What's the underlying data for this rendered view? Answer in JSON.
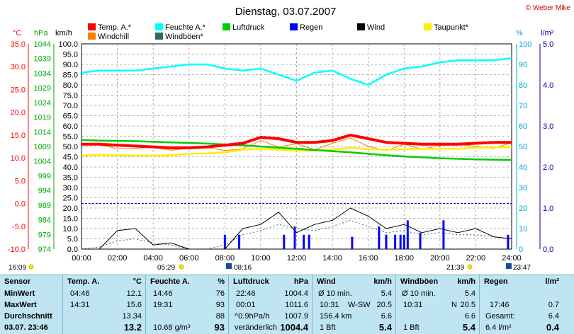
{
  "header": {
    "title": "Dienstag, 03.07.2007",
    "credit": "© Weber Mike"
  },
  "legend": [
    {
      "label": "Temp. A.*",
      "color": "#ff0000"
    },
    {
      "label": "Feuchte A.*",
      "color": "#00ffff"
    },
    {
      "label": "Luftdruck",
      "color": "#00cc00"
    },
    {
      "label": "Regen",
      "color": "#0000ff"
    },
    {
      "label": "Wind",
      "color": "#000000"
    },
    {
      "label": "Taupunkt*",
      "color": "#ffee00"
    },
    {
      "label": "Windchill",
      "color": "#ff8000"
    },
    {
      "label": "Windböen*",
      "color": "#336666"
    }
  ],
  "axes": {
    "temp_unit": "°C",
    "pressure_unit": "hPa",
    "wind_unit": "km/h",
    "humidity_unit": "%",
    "rain_unit": "l/m²",
    "temp_ticks": [
      "35.0",
      "30.0",
      "25.0",
      "20.0",
      "15.0",
      "10.0",
      "5.0",
      "0.0",
      "-5.0",
      "-10.0"
    ],
    "pressure_ticks": [
      "1044",
      "1039",
      "1034",
      "1029",
      "1024",
      "1019",
      "1014",
      "1009",
      "1004",
      "999",
      "994",
      "989",
      "984",
      "979",
      "974"
    ],
    "wind_ticks": [
      "100.0",
      "95.0",
      "90.0",
      "85.0",
      "80.0",
      "75.0",
      "70.0",
      "65.0",
      "60.0",
      "55.0",
      "50.0",
      "45.0",
      "40.0",
      "35.0",
      "30.0",
      "25.0",
      "20.0",
      "15.0",
      "10.0",
      "5.0",
      "0.0"
    ],
    "humidity_ticks": [
      "100",
      "90",
      "80",
      "70",
      "60",
      "50",
      "40",
      "30",
      "20",
      "10",
      "0"
    ],
    "rain_ticks": [
      "5.0",
      "4.0",
      "3.0",
      "2.0",
      "1.0",
      "0.0"
    ],
    "x_ticks": [
      "00:00",
      "02:00",
      "04:00",
      "06:00",
      "08:00",
      "10:00",
      "12:00",
      "14:00",
      "16:00",
      "18:00",
      "20:00",
      "22:00",
      "24:00"
    ]
  },
  "sun_marks": {
    "left_time": "16:09",
    "sunrise": "05:29",
    "moon_a": "08:16",
    "sunset": "21:39",
    "moon_b": "23:47"
  },
  "chart_data": {
    "type": "line",
    "x": [
      0,
      1,
      2,
      3,
      4,
      5,
      6,
      7,
      8,
      9,
      10,
      11,
      12,
      13,
      14,
      15,
      16,
      17,
      18,
      19,
      20,
      21,
      22,
      23,
      24
    ],
    "series": [
      {
        "name": "Temp. A.*",
        "axis": "temp",
        "color": "#ff0000",
        "values": [
          13.0,
          13.0,
          12.8,
          12.6,
          12.4,
          12.2,
          12.2,
          12.4,
          12.8,
          13.2,
          14.5,
          14.2,
          13.4,
          13.4,
          13.8,
          15.0,
          14.2,
          13.4,
          13.2,
          13.0,
          13.0,
          13.0,
          13.2,
          13.4,
          13.4
        ]
      },
      {
        "name": "Feuchte A.*",
        "axis": "humidity",
        "color": "#00ffff",
        "values": [
          86,
          87,
          87,
          87,
          88,
          89,
          90,
          90,
          88,
          87,
          88,
          85,
          82,
          86,
          87,
          83,
          80,
          85,
          88,
          89,
          91,
          92,
          92,
          92,
          93
        ]
      },
      {
        "name": "Luftdruck",
        "axis": "pressure",
        "color": "#00cc00",
        "values": [
          1011.2,
          1011.0,
          1010.9,
          1010.8,
          1010.6,
          1010.4,
          1010.2,
          1010.0,
          1009.7,
          1009.4,
          1009.0,
          1008.6,
          1008.2,
          1007.8,
          1007.4,
          1007.0,
          1006.5,
          1006.0,
          1005.6,
          1005.3,
          1005.0,
          1004.8,
          1004.6,
          1004.5,
          1004.4
        ]
      },
      {
        "name": "Taupunkt*",
        "axis": "temp",
        "color": "#ffee00",
        "values": [
          10.5,
          10.7,
          10.6,
          10.5,
          10.5,
          10.6,
          10.9,
          11.0,
          11.2,
          11.8,
          12.0,
          11.8,
          11.6,
          11.6,
          11.8,
          12.2,
          11.9,
          11.8,
          11.9,
          12.0,
          12.0,
          12.0,
          12.2,
          12.3,
          12.3
        ]
      },
      {
        "name": "Windchill",
        "axis": "temp",
        "color": "#ff8000",
        "values": [
          13.0,
          12.9,
          12.0,
          12.1,
          12.3,
          11.7,
          12.1,
          12.3,
          11.6,
          12.0,
          13.8,
          12.4,
          13.1,
          11.8,
          13.2,
          14.4,
          12.5,
          11.6,
          13.0,
          11.9,
          12.7,
          13.0,
          12.5,
          12.1,
          13.3
        ]
      },
      {
        "name": "Wind",
        "axis": "wind",
        "color": "#000000",
        "values": [
          0,
          0,
          9,
          10,
          2,
          3,
          0,
          0,
          0,
          10,
          12,
          18,
          8,
          12,
          14,
          20,
          16,
          10,
          12,
          8,
          10,
          8,
          10,
          6,
          5
        ]
      },
      {
        "name": "Windböen*",
        "axis": "wind",
        "color": "#336666",
        "values": [
          0,
          1,
          4,
          5,
          3,
          2,
          0,
          0,
          2,
          7,
          9,
          12,
          10,
          9,
          11,
          14,
          11,
          8,
          9,
          7,
          8,
          7,
          7,
          6,
          5
        ]
      }
    ],
    "rain": {
      "name": "Regen",
      "axis": "rain",
      "color": "#0000ff",
      "x": [
        8.0,
        8.8,
        11.3,
        11.9,
        12.4,
        12.7,
        15.1,
        16.6,
        17.0,
        17.5,
        17.8,
        18.0,
        18.2,
        18.9,
        20.2,
        23.8
      ],
      "values": [
        0.35,
        0.35,
        0.35,
        0.55,
        0.35,
        0.35,
        0.3,
        0.55,
        0.35,
        0.35,
        0.35,
        0.35,
        0.7,
        0.4,
        0.7,
        0.35
      ]
    },
    "ylim_temp": [
      -10,
      35
    ],
    "ylim_pressure": [
      974,
      1044
    ],
    "ylim_wind": [
      0,
      100
    ],
    "ylim_humidity": [
      0,
      100
    ],
    "ylim_rain": [
      0,
      5
    ],
    "grid": true
  },
  "stats": {
    "sensor": {
      "header": "Sensor",
      "rows": [
        "MinWert",
        "MaxWert",
        "Durchschnitt",
        "03.07. 23:46"
      ]
    },
    "temp": {
      "header": "Temp. A.",
      "unit": "°C",
      "rows": [
        [
          "04:46",
          "12.1"
        ],
        [
          "14:31",
          "15.6"
        ],
        [
          "",
          "13.34"
        ],
        [
          "",
          "13.2"
        ]
      ]
    },
    "hum": {
      "header": "Feuchte A.",
      "unit": "%",
      "rows": [
        [
          "14:46",
          "76"
        ],
        [
          "19:31",
          "93"
        ],
        [
          "",
          "88"
        ],
        [
          "10.68 g/m³",
          "93"
        ]
      ]
    },
    "press": {
      "header": "Luftdruck",
      "unit": "hPa",
      "rows": [
        [
          "22:46",
          "1004.4"
        ],
        [
          "00:01",
          "1011.6"
        ],
        [
          "^0.9hPa/h",
          "1007.9"
        ],
        [
          "veränderlich",
          "1004.4"
        ]
      ]
    },
    "wind": {
      "header": "Wind",
      "unit": "km/h",
      "rows": [
        [
          "Ø 10 min.",
          "",
          "5.4"
        ],
        [
          "10:31",
          "W-SW",
          "20.5"
        ],
        [
          "156.4 km",
          "",
          "6.6"
        ],
        [
          "1 Bft",
          "",
          "5.4"
        ]
      ]
    },
    "gust": {
      "header": "Windböen",
      "unit": "km/h",
      "rows": [
        [
          "Ø 10 min.",
          "",
          "5.4"
        ],
        [
          "10:31",
          "N",
          "20.5"
        ],
        [
          "",
          "",
          "6.6"
        ],
        [
          "1 Bft",
          "",
          "5.4"
        ]
      ]
    },
    "rain": {
      "header": "Regen",
      "unit": "l/m²",
      "rows": [
        [
          "",
          ""
        ],
        [
          "17:46",
          "0.7"
        ],
        [
          "Gesamt:",
          "6.4"
        ],
        [
          "6.4 l/m²",
          "0.4"
        ]
      ]
    }
  }
}
